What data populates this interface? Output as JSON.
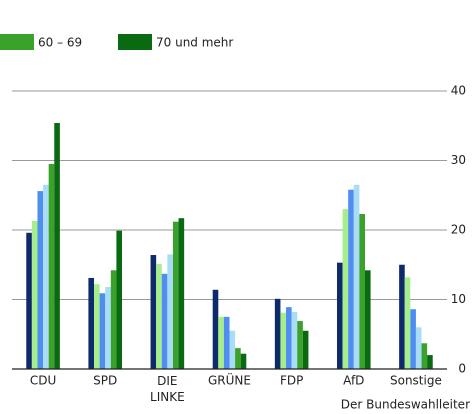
{
  "chart_data": {
    "type": "bar",
    "categories": [
      "CDU",
      "SPD",
      "DIE LINKE",
      "GRÜNE",
      "FDP",
      "AfD",
      "Sonstige"
    ],
    "series": [
      {
        "color": "#0d2a6b",
        "values": [
          19.6,
          13.1,
          16.4,
          11.4,
          10.1,
          15.3,
          15.0
        ]
      },
      {
        "color": "#a6ee8c",
        "values": [
          21.3,
          12.2,
          15.1,
          7.5,
          8.1,
          23.0,
          13.2
        ]
      },
      {
        "color": "#4f8ef0",
        "values": [
          25.6,
          10.9,
          13.7,
          7.5,
          8.9,
          25.8,
          8.6
        ]
      },
      {
        "color": "#a9dcf6",
        "values": [
          26.5,
          11.8,
          16.5,
          5.5,
          8.2,
          26.5,
          6.0
        ]
      },
      {
        "name": "60 – 69",
        "color": "#3aa12a",
        "values": [
          29.5,
          14.2,
          21.2,
          3.0,
          6.9,
          22.3,
          3.7
        ]
      },
      {
        "name": "70 und mehr",
        "color": "#0a6a12",
        "values": [
          35.4,
          19.9,
          21.7,
          2.2,
          5.5,
          14.2,
          2.0
        ]
      }
    ],
    "ylim": [
      0,
      40
    ],
    "yticks": [
      0,
      10,
      20,
      30,
      40
    ],
    "grid": true,
    "source": "Der Bundeswahlleiter"
  }
}
